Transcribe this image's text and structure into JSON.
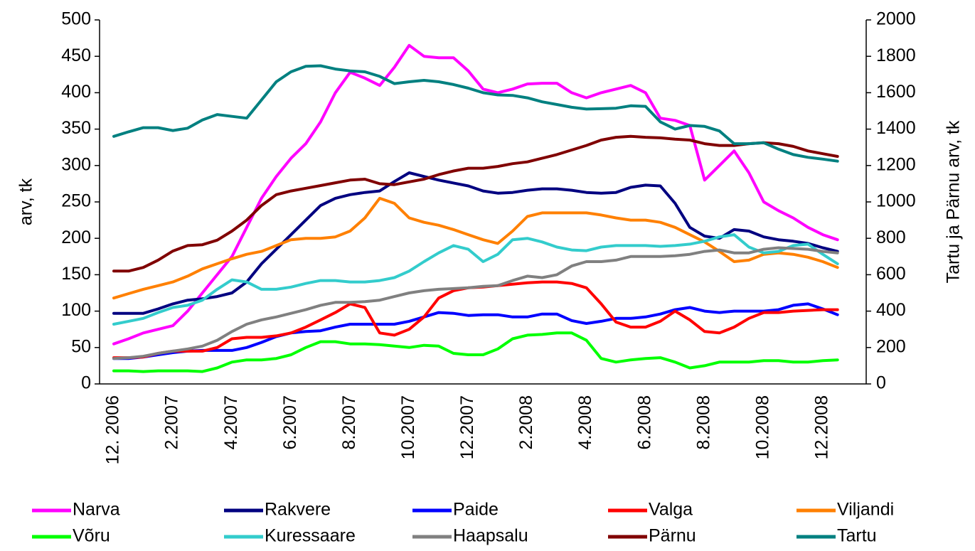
{
  "chart_data": {
    "type": "line",
    "y_label": "arv, tk",
    "y2_label": "Tartu ja Pärnu arv, tk",
    "categories": [
      "12. 2006",
      null,
      null,
      null,
      "2.2007",
      null,
      null,
      null,
      "4.2007",
      null,
      null,
      null,
      "6.2007",
      null,
      null,
      null,
      "8.2007",
      null,
      null,
      null,
      "10.2007",
      null,
      null,
      null,
      "12.2007",
      null,
      null,
      null,
      "2.2008",
      null,
      null,
      null,
      "4.2008",
      null,
      null,
      null,
      "6.2008",
      null,
      null,
      null,
      "8.2008",
      null,
      null,
      null,
      "10.2008",
      null,
      null,
      null,
      "12.2008",
      null
    ],
    "ylim": [
      0,
      500
    ],
    "yticks": [
      0,
      50,
      100,
      150,
      200,
      250,
      300,
      350,
      400,
      450,
      500
    ],
    "y2lim": [
      0,
      2000
    ],
    "y2ticks": [
      0,
      200,
      400,
      600,
      800,
      1000,
      1200,
      1400,
      1600,
      1800,
      2000
    ],
    "legend": "bottom",
    "series": [
      {
        "name": "Narva",
        "color": "#ff00ff",
        "values": [
          55,
          62,
          70,
          75,
          80,
          100,
          125,
          150,
          175,
          215,
          255,
          285,
          310,
          330,
          360,
          400,
          428,
          420,
          410,
          435,
          465,
          450,
          448,
          448,
          430,
          405,
          400,
          405,
          412,
          413,
          413,
          400,
          393,
          400,
          405,
          410,
          400,
          365,
          362,
          355,
          280,
          300,
          320,
          290,
          250,
          238,
          228,
          215,
          205,
          198
        ]
      },
      {
        "name": "Rakvere",
        "color": "#000080",
        "values": [
          97,
          97,
          97,
          103,
          110,
          115,
          117,
          120,
          125,
          140,
          165,
          185,
          205,
          225,
          245,
          255,
          260,
          263,
          265,
          278,
          290,
          285,
          280,
          276,
          272,
          265,
          262,
          263,
          266,
          268,
          268,
          266,
          263,
          262,
          263,
          270,
          273,
          272,
          248,
          215,
          203,
          200,
          212,
          210,
          202,
          198,
          196,
          193,
          187,
          182
        ]
      },
      {
        "name": "Paide",
        "color": "#0000ff",
        "values": [
          35,
          35,
          37,
          40,
          43,
          45,
          46,
          46,
          46,
          50,
          57,
          65,
          70,
          72,
          73,
          78,
          82,
          82,
          82,
          82,
          86,
          92,
          98,
          97,
          94,
          95,
          95,
          92,
          92,
          96,
          96,
          87,
          83,
          86,
          90,
          90,
          92,
          96,
          102,
          105,
          100,
          98,
          100,
          100,
          100,
          102,
          108,
          110,
          103,
          95
        ]
      },
      {
        "name": "Valga",
        "color": "#ff0000",
        "values": [
          36,
          36,
          37,
          42,
          45,
          45,
          45,
          50,
          62,
          64,
          64,
          66,
          70,
          78,
          88,
          98,
          110,
          105,
          70,
          67,
          75,
          92,
          118,
          128,
          132,
          133,
          135,
          137,
          139,
          140,
          140,
          138,
          132,
          110,
          85,
          78,
          78,
          86,
          100,
          88,
          72,
          70,
          78,
          90,
          98,
          98,
          100,
          101,
          102,
          102
        ]
      },
      {
        "name": "Viljandi",
        "color": "#ff8000",
        "values": [
          118,
          124,
          130,
          135,
          140,
          148,
          158,
          165,
          172,
          178,
          182,
          190,
          198,
          200,
          200,
          202,
          210,
          228,
          255,
          248,
          228,
          222,
          218,
          212,
          205,
          198,
          193,
          210,
          230,
          235,
          235,
          235,
          235,
          232,
          228,
          225,
          225,
          222,
          215,
          205,
          195,
          182,
          168,
          170,
          178,
          180,
          178,
          174,
          168,
          160
        ]
      },
      {
        "name": "Võru",
        "color": "#00ff00",
        "values": [
          18,
          18,
          17,
          18,
          18,
          18,
          17,
          22,
          30,
          33,
          33,
          35,
          40,
          50,
          58,
          58,
          55,
          55,
          54,
          52,
          50,
          53,
          52,
          42,
          40,
          40,
          48,
          62,
          67,
          68,
          70,
          70,
          60,
          35,
          30,
          33,
          35,
          36,
          30,
          22,
          25,
          30,
          30,
          30,
          32,
          32,
          30,
          30,
          32,
          33
        ]
      },
      {
        "name": "Kuressaare",
        "color": "#33cccc",
        "values": [
          82,
          86,
          90,
          98,
          105,
          108,
          115,
          130,
          143,
          140,
          130,
          130,
          133,
          138,
          142,
          142,
          140,
          140,
          142,
          146,
          155,
          168,
          180,
          190,
          185,
          168,
          178,
          198,
          200,
          195,
          188,
          184,
          183,
          188,
          190,
          190,
          190,
          189,
          190,
          192,
          196,
          202,
          205,
          188,
          180,
          182,
          190,
          192,
          178,
          165
        ]
      },
      {
        "name": "Haapsalu",
        "color": "#808080",
        "values": [
          35,
          36,
          38,
          42,
          45,
          48,
          52,
          60,
          72,
          82,
          88,
          92,
          97,
          102,
          108,
          112,
          112,
          113,
          115,
          120,
          125,
          128,
          130,
          131,
          132,
          134,
          135,
          142,
          148,
          146,
          150,
          162,
          168,
          168,
          170,
          175,
          175,
          175,
          176,
          178,
          182,
          184,
          180,
          180,
          185,
          187,
          186,
          185,
          182,
          180
        ]
      },
      {
        "name": "Pärnu",
        "color": "#800000",
        "axis": "y2",
        "values": [
          620,
          620,
          640,
          680,
          730,
          760,
          765,
          790,
          840,
          900,
          980,
          1040,
          1060,
          1075,
          1090,
          1105,
          1120,
          1125,
          1100,
          1095,
          1110,
          1125,
          1150,
          1170,
          1185,
          1185,
          1195,
          1210,
          1220,
          1240,
          1260,
          1285,
          1310,
          1340,
          1355,
          1360,
          1355,
          1352,
          1345,
          1340,
          1320,
          1310,
          1310,
          1320,
          1325,
          1320,
          1305,
          1280,
          1265,
          1250
        ]
      },
      {
        "name": "Tartu",
        "color": "#008080",
        "axis": "y2",
        "values": [
          1360,
          1385,
          1408,
          1408,
          1392,
          1405,
          1450,
          1480,
          1470,
          1460,
          1560,
          1660,
          1715,
          1745,
          1748,
          1730,
          1720,
          1715,
          1690,
          1650,
          1660,
          1668,
          1660,
          1645,
          1625,
          1600,
          1588,
          1585,
          1572,
          1550,
          1535,
          1520,
          1510,
          1512,
          1515,
          1528,
          1525,
          1440,
          1400,
          1420,
          1415,
          1390,
          1320,
          1320,
          1325,
          1290,
          1260,
          1245,
          1235,
          1224
        ]
      }
    ]
  }
}
